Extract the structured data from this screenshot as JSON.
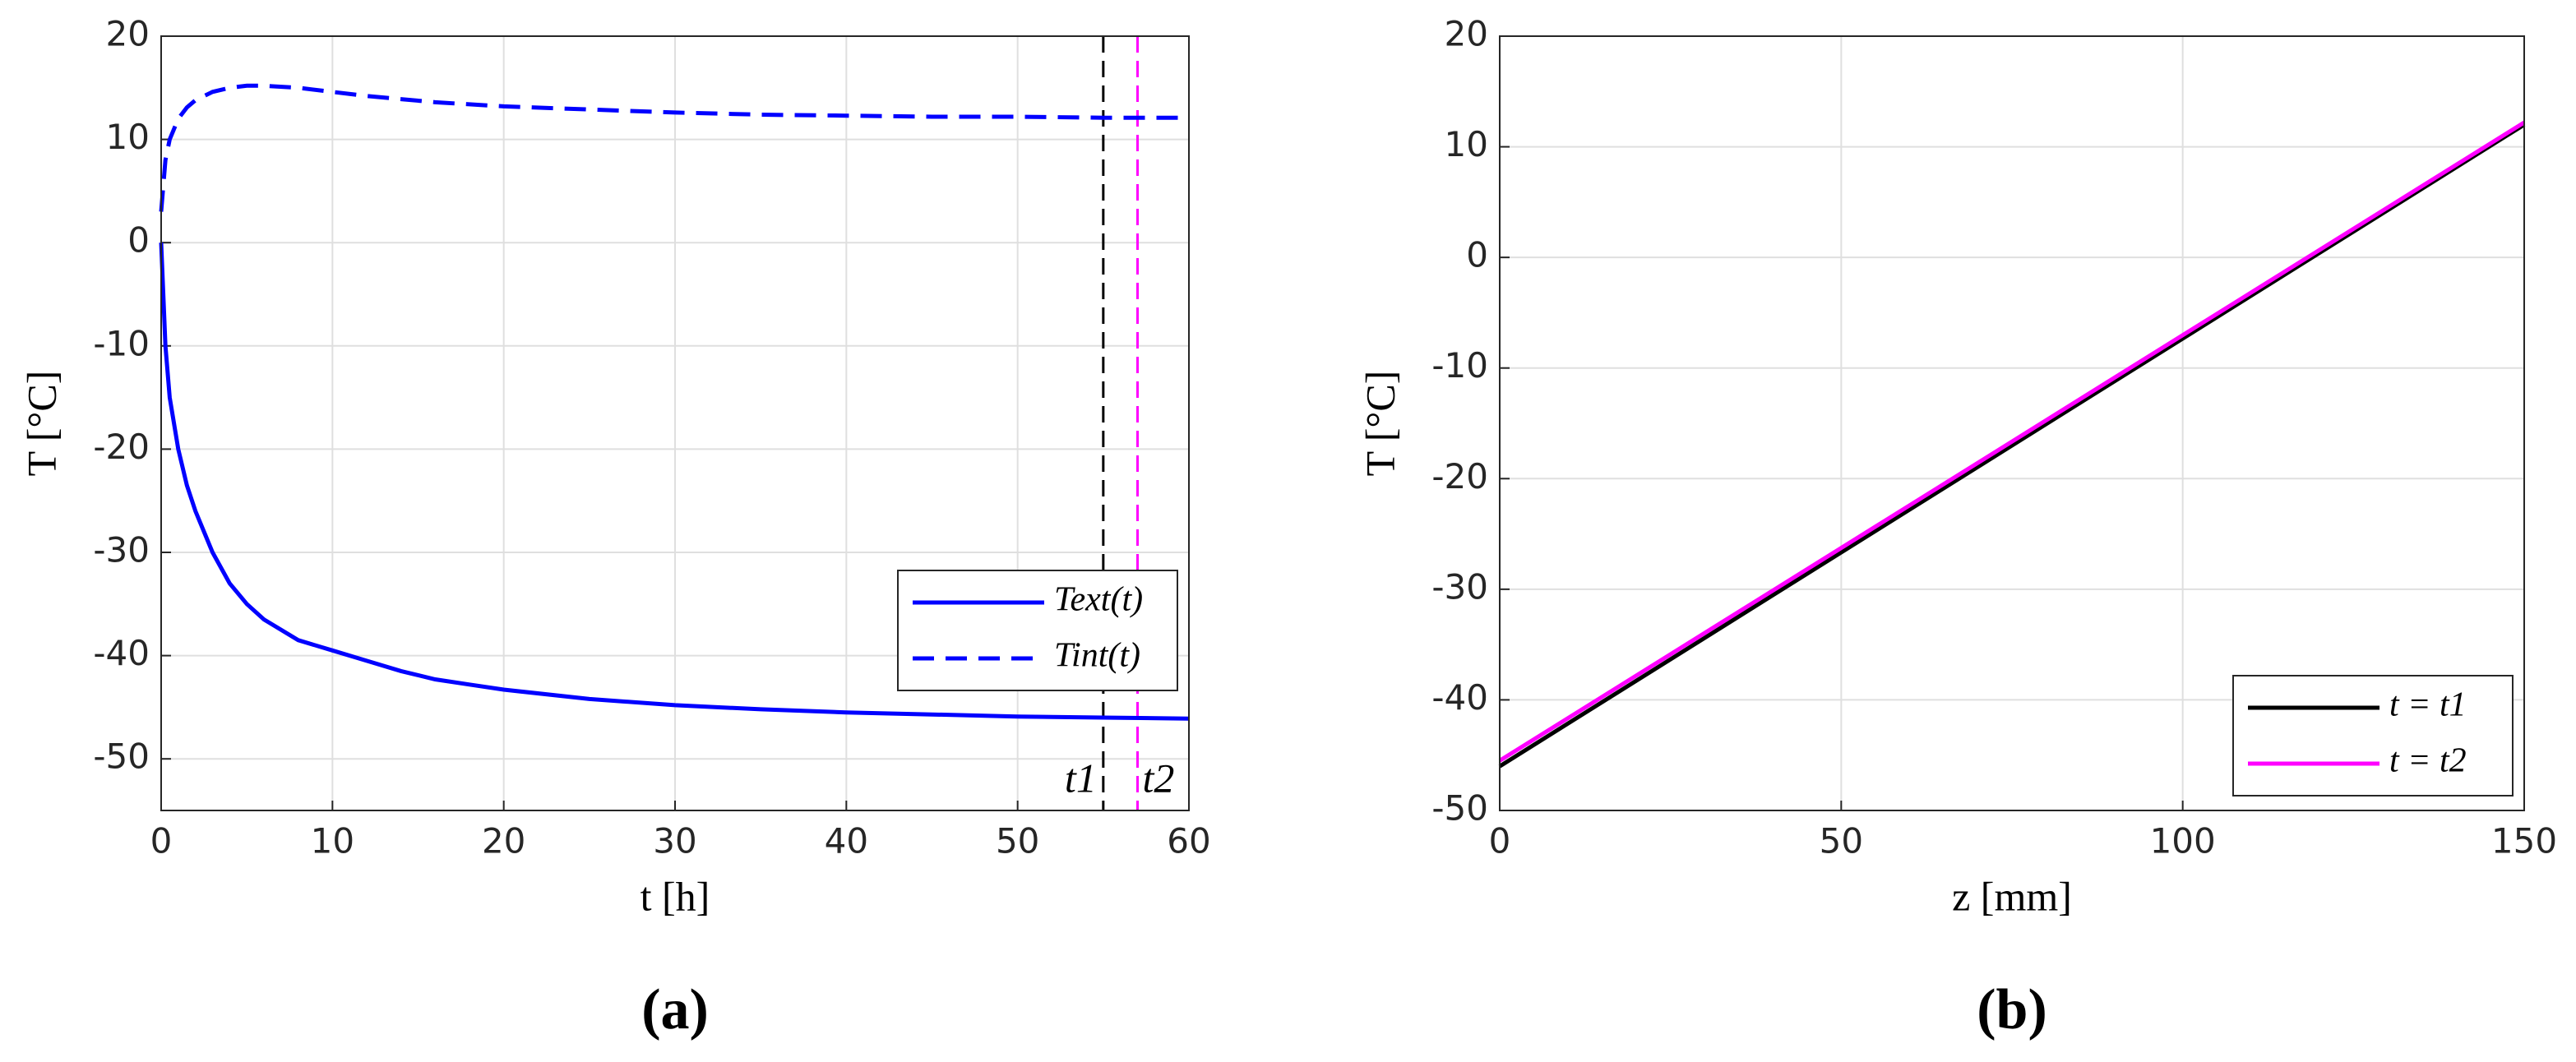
{
  "chart_data": [
    {
      "type": "line",
      "caption": "(a)",
      "xlabel": "t [h]",
      "ylabel": "T [°C]",
      "x": [
        0,
        0.25,
        0.5,
        1,
        1.5,
        2,
        3,
        4,
        5,
        6,
        8,
        10,
        12,
        14,
        16,
        18,
        20,
        25,
        30,
        35,
        40,
        45,
        50,
        55,
        60
      ],
      "series": [
        {
          "name": "Text(t)",
          "color": "#0000ff",
          "style": "solid",
          "values": [
            0,
            -10,
            -15,
            -20,
            -23.5,
            -26,
            -30,
            -33,
            -35,
            -36.5,
            -38.5,
            -39.5,
            -40.5,
            -41.5,
            -42.3,
            -42.8,
            -43.3,
            -44.2,
            -44.8,
            -45.2,
            -45.5,
            -45.7,
            -45.9,
            -46,
            -46.1
          ]
        },
        {
          "name": "Tint(t)",
          "color": "#0000ff",
          "style": "dashed",
          "values": [
            3,
            8,
            10,
            12,
            13.1,
            13.8,
            14.6,
            15,
            15.2,
            15.2,
            15,
            14.6,
            14.2,
            13.9,
            13.6,
            13.4,
            13.2,
            12.9,
            12.6,
            12.4,
            12.3,
            12.2,
            12.2,
            12.1,
            12.1
          ]
        }
      ],
      "vlines": [
        {
          "x": 55,
          "label": "t1",
          "color": "#000000"
        },
        {
          "x": 57,
          "label": "t2",
          "color": "#ff00ff"
        }
      ],
      "xlim": [
        0,
        60
      ],
      "xticks": [
        0,
        10,
        20,
        30,
        40,
        50,
        60
      ],
      "ylim": [
        -55,
        20
      ],
      "yticks": [
        -50,
        -40,
        -30,
        -20,
        -10,
        0,
        10,
        20
      ],
      "grid": true,
      "legend": "lower right"
    },
    {
      "type": "line",
      "caption": "(b)",
      "xlabel": "z [mm]",
      "ylabel": "T [°C]",
      "x": [
        0,
        150
      ],
      "series": [
        {
          "name": "t = t1",
          "color": "#000000",
          "style": "solid",
          "values": [
            -46,
            12
          ]
        },
        {
          "name": "t = t2",
          "color": "#ff00ff",
          "style": "solid",
          "values": [
            -45.5,
            12.2
          ]
        }
      ],
      "xlim": [
        0,
        150
      ],
      "xticks": [
        0,
        50,
        100,
        150
      ],
      "ylim": [
        -50,
        20
      ],
      "yticks": [
        -50,
        -40,
        -30,
        -20,
        -10,
        0,
        10,
        20
      ],
      "grid": true,
      "legend": "lower right"
    }
  ]
}
